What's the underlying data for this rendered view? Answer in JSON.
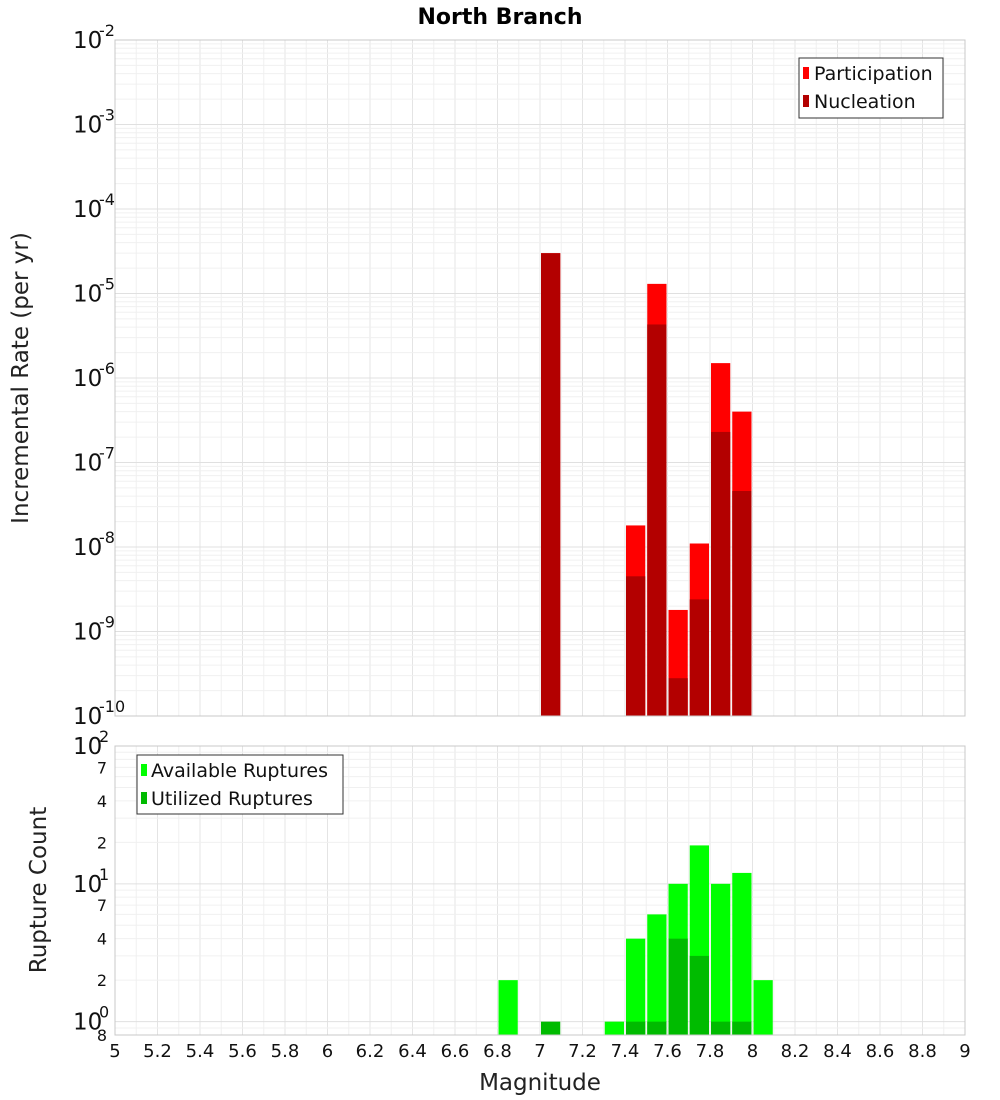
{
  "chart_data": [
    {
      "type": "bar",
      "title": "North Branch",
      "xlabel": "",
      "ylabel": "Incremental Rate (per yr)",
      "yscale": "log",
      "ylim": [
        1e-10,
        0.01
      ],
      "xlim": [
        5,
        9
      ],
      "grid": true,
      "legend_position": "top-right",
      "bar_width": 0.1,
      "y_major_ticks": [
        {
          "base": "10",
          "exp": "-10"
        },
        {
          "base": "10",
          "exp": "-9"
        },
        {
          "base": "10",
          "exp": "-8"
        },
        {
          "base": "10",
          "exp": "-7"
        },
        {
          "base": "10",
          "exp": "-6"
        },
        {
          "base": "10",
          "exp": "-5"
        },
        {
          "base": "10",
          "exp": "-4"
        },
        {
          "base": "10",
          "exp": "-3"
        },
        {
          "base": "10",
          "exp": "-2"
        }
      ],
      "series": [
        {
          "name": "Participation",
          "color": "#ff0000",
          "x": [
            7.05,
            7.45,
            7.55,
            7.65,
            7.75,
            7.85,
            7.95
          ],
          "values": [
            3e-05,
            1.8e-08,
            1.3e-05,
            1.8e-09,
            1.1e-08,
            1.5e-06,
            4e-07
          ]
        },
        {
          "name": "Nucleation",
          "color": "#b30000",
          "x": [
            7.05,
            7.45,
            7.55,
            7.65,
            7.75,
            7.85,
            7.95
          ],
          "values": [
            3e-05,
            4.5e-09,
            4.3e-06,
            2.8e-10,
            2.4e-09,
            2.3e-07,
            4.6e-08
          ]
        }
      ]
    },
    {
      "type": "bar",
      "title": "",
      "xlabel": "Magnitude",
      "ylabel": "Rupture Count",
      "yscale": "log",
      "ylim": [
        0.8,
        100
      ],
      "xlim": [
        5,
        9
      ],
      "grid": true,
      "legend_position": "top-left",
      "bar_width": 0.1,
      "x_ticks": [
        "5",
        "5.2",
        "5.4",
        "5.6",
        "5.8",
        "6",
        "6.2",
        "6.4",
        "6.6",
        "6.8",
        "7",
        "7.2",
        "7.4",
        "7.6",
        "7.8",
        "8",
        "8.2",
        "8.4",
        "8.6",
        "8.8",
        "9"
      ],
      "y_major_ticks": [
        {
          "base": "10",
          "exp": "0",
          "value": 1
        },
        {
          "base": "10",
          "exp": "1",
          "value": 10
        },
        {
          "base": "10",
          "exp": "2",
          "value": 100
        }
      ],
      "y_minor_ticks": [
        {
          "label": "8",
          "value": 0.8
        },
        {
          "label": "2",
          "value": 2
        },
        {
          "label": "4",
          "value": 4
        },
        {
          "label": "7",
          "value": 7
        },
        {
          "label": "2",
          "value": 20
        },
        {
          "label": "4",
          "value": 40
        },
        {
          "label": "7",
          "value": 70
        }
      ],
      "series": [
        {
          "name": "Available Ruptures",
          "color": "#00ff00",
          "x": [
            6.85,
            7.35,
            7.45,
            7.55,
            7.65,
            7.75,
            7.85,
            7.95,
            8.05
          ],
          "values": [
            2,
            1,
            4,
            6,
            10,
            19,
            10,
            12,
            2
          ]
        },
        {
          "name": "Utilized Ruptures",
          "color": "#00bb00",
          "x": [
            7.05,
            7.45,
            7.55,
            7.65,
            7.75,
            7.85,
            7.95
          ],
          "values": [
            1,
            1,
            1,
            4,
            3,
            1,
            1
          ]
        }
      ]
    }
  ]
}
